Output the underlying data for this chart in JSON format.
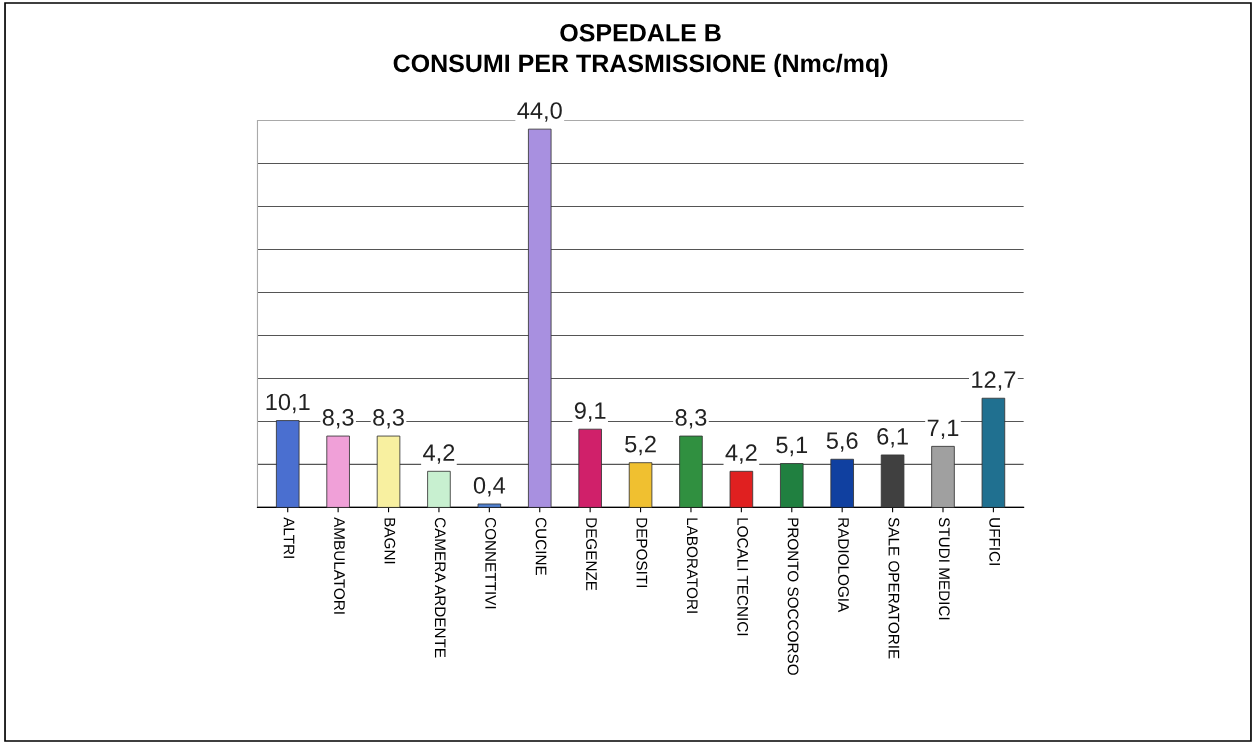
{
  "chart_data": {
    "type": "bar",
    "title": "OSPEDALE B\nCONSUMI PER TRASMISSIONE (Nmc/mq)",
    "categories": [
      "ALTRI",
      "AMBULATORI",
      "BAGNI",
      "CAMERA ARDENTE",
      "CONNETTIVI",
      "CUCINE",
      "DEGENZE",
      "DEPOSITI",
      "LABORATORI",
      "LOCALI TECNICI",
      "PRONTO SOCCORSO",
      "RADIOLOGIA",
      "SALE OPERATORIE",
      "STUDI MEDICI",
      "UFFICI"
    ],
    "values": [
      10.1,
      8.3,
      8.3,
      4.2,
      0.4,
      44.0,
      9.1,
      5.2,
      8.3,
      4.2,
      5.1,
      5.6,
      6.1,
      7.1,
      12.7
    ],
    "value_labels": [
      "10,1",
      "8,3",
      "8,3",
      "4,2",
      "0,4",
      "44,0",
      "9,1",
      "5,2",
      "8,3",
      "4,2",
      "5,1",
      "5,6",
      "6,1",
      "7,1",
      "12,7"
    ],
    "colors": [
      "#4a6fd0",
      "#f0a0d8",
      "#f8f0a0",
      "#c8f0d0",
      "#5080d0",
      "#a890e0",
      "#d0206a",
      "#f0c030",
      "#309040",
      "#e02020",
      "#208040",
      "#1040a0",
      "#404040",
      "#a0a0a0",
      "#207090"
    ],
    "ylim": [
      0,
      45
    ],
    "yticks": [
      {
        "value": 0,
        "label": null
      },
      {
        "value": 5,
        "label": null
      },
      {
        "value": 10,
        "label": null
      },
      {
        "value": 15,
        "label": null
      },
      {
        "value": 20,
        "label": null
      },
      {
        "value": 25,
        "label": null
      },
      {
        "value": 30,
        "label": null
      },
      {
        "value": 35,
        "label": null
      },
      {
        "value": 40,
        "label": null
      },
      {
        "value": 45,
        "label": null
      }
    ],
    "grid": "y",
    "legend": false
  }
}
